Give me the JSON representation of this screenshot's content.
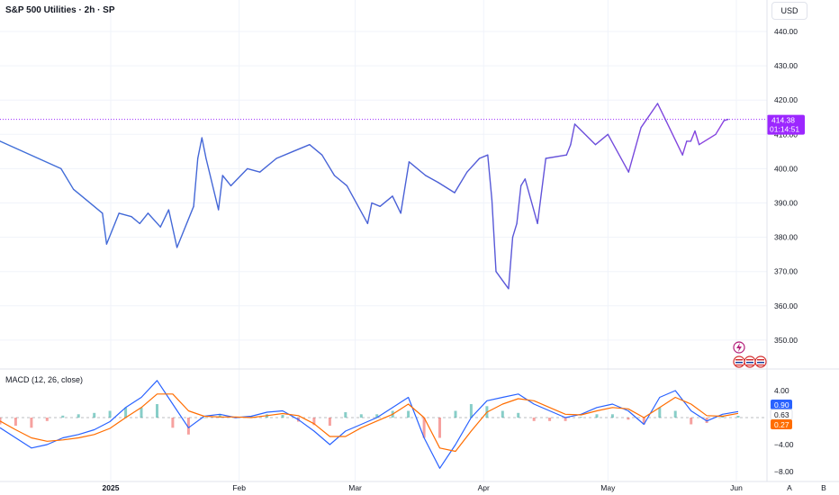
{
  "header": {
    "title": "S&P 500 Utilities · 2h · SP"
  },
  "currency": "USD",
  "last_price": {
    "value": "414.38",
    "countdown": "01:14:51",
    "color": "#9c27ff"
  },
  "macd": {
    "title": "MACD (12, 26, close)",
    "macd_value": "0.90",
    "signal_value": "0.63",
    "hist_value": "0.27",
    "macd_color": "#2962ff",
    "signal_color": "#ff6d00",
    "hist_up": "#26a69a",
    "hist_down": "#ef5350"
  },
  "time_axis": {
    "labels": [
      "2025",
      "Feb",
      "Mar",
      "Apr",
      "May",
      "Jun"
    ],
    "corner": [
      "A",
      "B"
    ]
  },
  "events": {
    "icons": [
      "flash-icon",
      "us-flag-icon",
      "us-flag-icon",
      "us-flag-icon"
    ]
  },
  "chart_data": [
    {
      "type": "line",
      "title": "S&P 500 Utilities · 2h · SP",
      "ylim": [
        341,
        446
      ],
      "yticks": [
        350,
        360,
        370,
        380,
        390,
        400,
        410,
        420,
        430,
        440
      ],
      "ytick_labels": [
        "350.00",
        "360.00",
        "370.00",
        "380.00",
        "390.00",
        "400.00",
        "410.00",
        "420.00",
        "430.00",
        "440.00"
      ],
      "series": [
        {
          "x": [
            "Dec 19",
            "Dec 20",
            "Dec 23",
            "Dec 26",
            "Dec 30",
            "Dec 31",
            "Jan 2",
            "Jan 3",
            "Jan 6",
            "Jan 8",
            "Jan 10",
            "Jan 13",
            "Jan 15",
            "Jan 17",
            "Jan 21",
            "Jan 22",
            "Jan 23",
            "Jan 24",
            "Jan 27",
            "Jan 28",
            "Jan 30",
            "Feb 3",
            "Feb 6",
            "Feb 10",
            "Feb 14",
            "Feb 18",
            "Feb 21",
            "Feb 24",
            "Feb 27",
            "Mar 4",
            "Mar 5",
            "Mar 7",
            "Mar 10",
            "Mar 12",
            "Mar 14",
            "Mar 18",
            "Mar 21",
            "Mar 25",
            "Mar 28",
            "Mar 31",
            "Apr 2",
            "Apr 3",
            "Apr 4",
            "Apr 7",
            "Apr 8",
            "Apr 9",
            "Apr 10",
            "Apr 11",
            "Apr 14",
            "Apr 16",
            "Apr 21",
            "Apr 22",
            "Apr 23",
            "Apr 28",
            "May 1",
            "May 6",
            "May 9",
            "May 13",
            "May 15",
            "May 19",
            "May 20",
            "May 21",
            "May 22",
            "May 23",
            "May 27",
            "May 29",
            "May 30"
          ],
          "y": [
            408,
            400,
            394,
            391,
            387,
            378,
            384,
            387,
            386,
            384,
            387,
            383,
            388,
            377,
            389,
            403,
            409,
            403,
            388,
            398,
            395,
            400,
            399,
            403,
            405,
            407,
            404,
            398,
            395,
            384,
            390,
            389,
            392,
            387,
            402,
            398,
            396,
            393,
            399,
            403,
            404,
            391,
            370,
            365,
            380,
            384,
            395,
            397,
            384,
            403,
            404,
            407,
            413,
            407,
            410,
            399,
            412,
            419,
            414,
            404,
            408,
            408,
            411,
            407,
            410,
            414,
            414.38
          ]
        }
      ]
    },
    {
      "type": "line",
      "title": "MACD (12, 26, close)",
      "ylim": [
        -9,
        6
      ],
      "yticks": [
        -8,
        -4,
        4
      ],
      "ytick_labels": [
        "−8.00",
        "−4.00",
        "4.00"
      ],
      "series": [
        {
          "name": "MACD",
          "values": [
            -1.5,
            -3.0,
            -4.5,
            -4.0,
            -3.0,
            -2.5,
            -1.8,
            -0.6,
            1.5,
            3.0,
            5.5,
            2.0,
            -1.5,
            0.2,
            0.5,
            0.0,
            0.2,
            0.8,
            1.0,
            -0.3,
            -2.0,
            -4.0,
            -2.0,
            -1.0,
            0.0,
            1.5,
            3.0,
            -3.0,
            -7.5,
            -4.0,
            0.0,
            2.5,
            3.0,
            3.5,
            2.0,
            1.0,
            0.0,
            0.5,
            1.5,
            2.0,
            1.0,
            -1.0,
            3.0,
            4.0,
            1.0,
            -0.5,
            0.5,
            0.9
          ]
        },
        {
          "name": "Signal",
          "values": [
            -0.5,
            -1.8,
            -3.0,
            -3.5,
            -3.3,
            -3.0,
            -2.5,
            -1.6,
            0.0,
            1.5,
            3.5,
            3.5,
            1.0,
            0.2,
            0.1,
            0.1,
            0.0,
            0.3,
            0.6,
            0.3,
            -0.9,
            -2.8,
            -2.8,
            -1.5,
            -0.5,
            0.5,
            2.0,
            0.0,
            -4.5,
            -5.0,
            -2.0,
            0.8,
            2.0,
            2.8,
            2.5,
            1.5,
            0.5,
            0.4,
            1.0,
            1.5,
            1.3,
            0.0,
            1.5,
            3.0,
            2.0,
            0.3,
            0.2,
            0.63
          ]
        }
      ],
      "histogram": [
        -1.0,
        -1.2,
        -1.5,
        -0.5,
        0.3,
        0.5,
        0.7,
        1.0,
        1.5,
        1.5,
        2.0,
        -1.5,
        -2.5,
        0.0,
        0.4,
        -0.1,
        0.2,
        0.5,
        0.4,
        -0.6,
        -1.1,
        -1.2,
        0.8,
        0.5,
        0.5,
        1.0,
        1.0,
        -3.0,
        -3.0,
        1.0,
        2.0,
        1.7,
        1.0,
        0.7,
        -0.5,
        -0.5,
        -0.5,
        0.1,
        0.5,
        0.5,
        -0.3,
        -1.0,
        1.5,
        1.0,
        -1.0,
        -0.8,
        0.3,
        0.27
      ]
    }
  ]
}
